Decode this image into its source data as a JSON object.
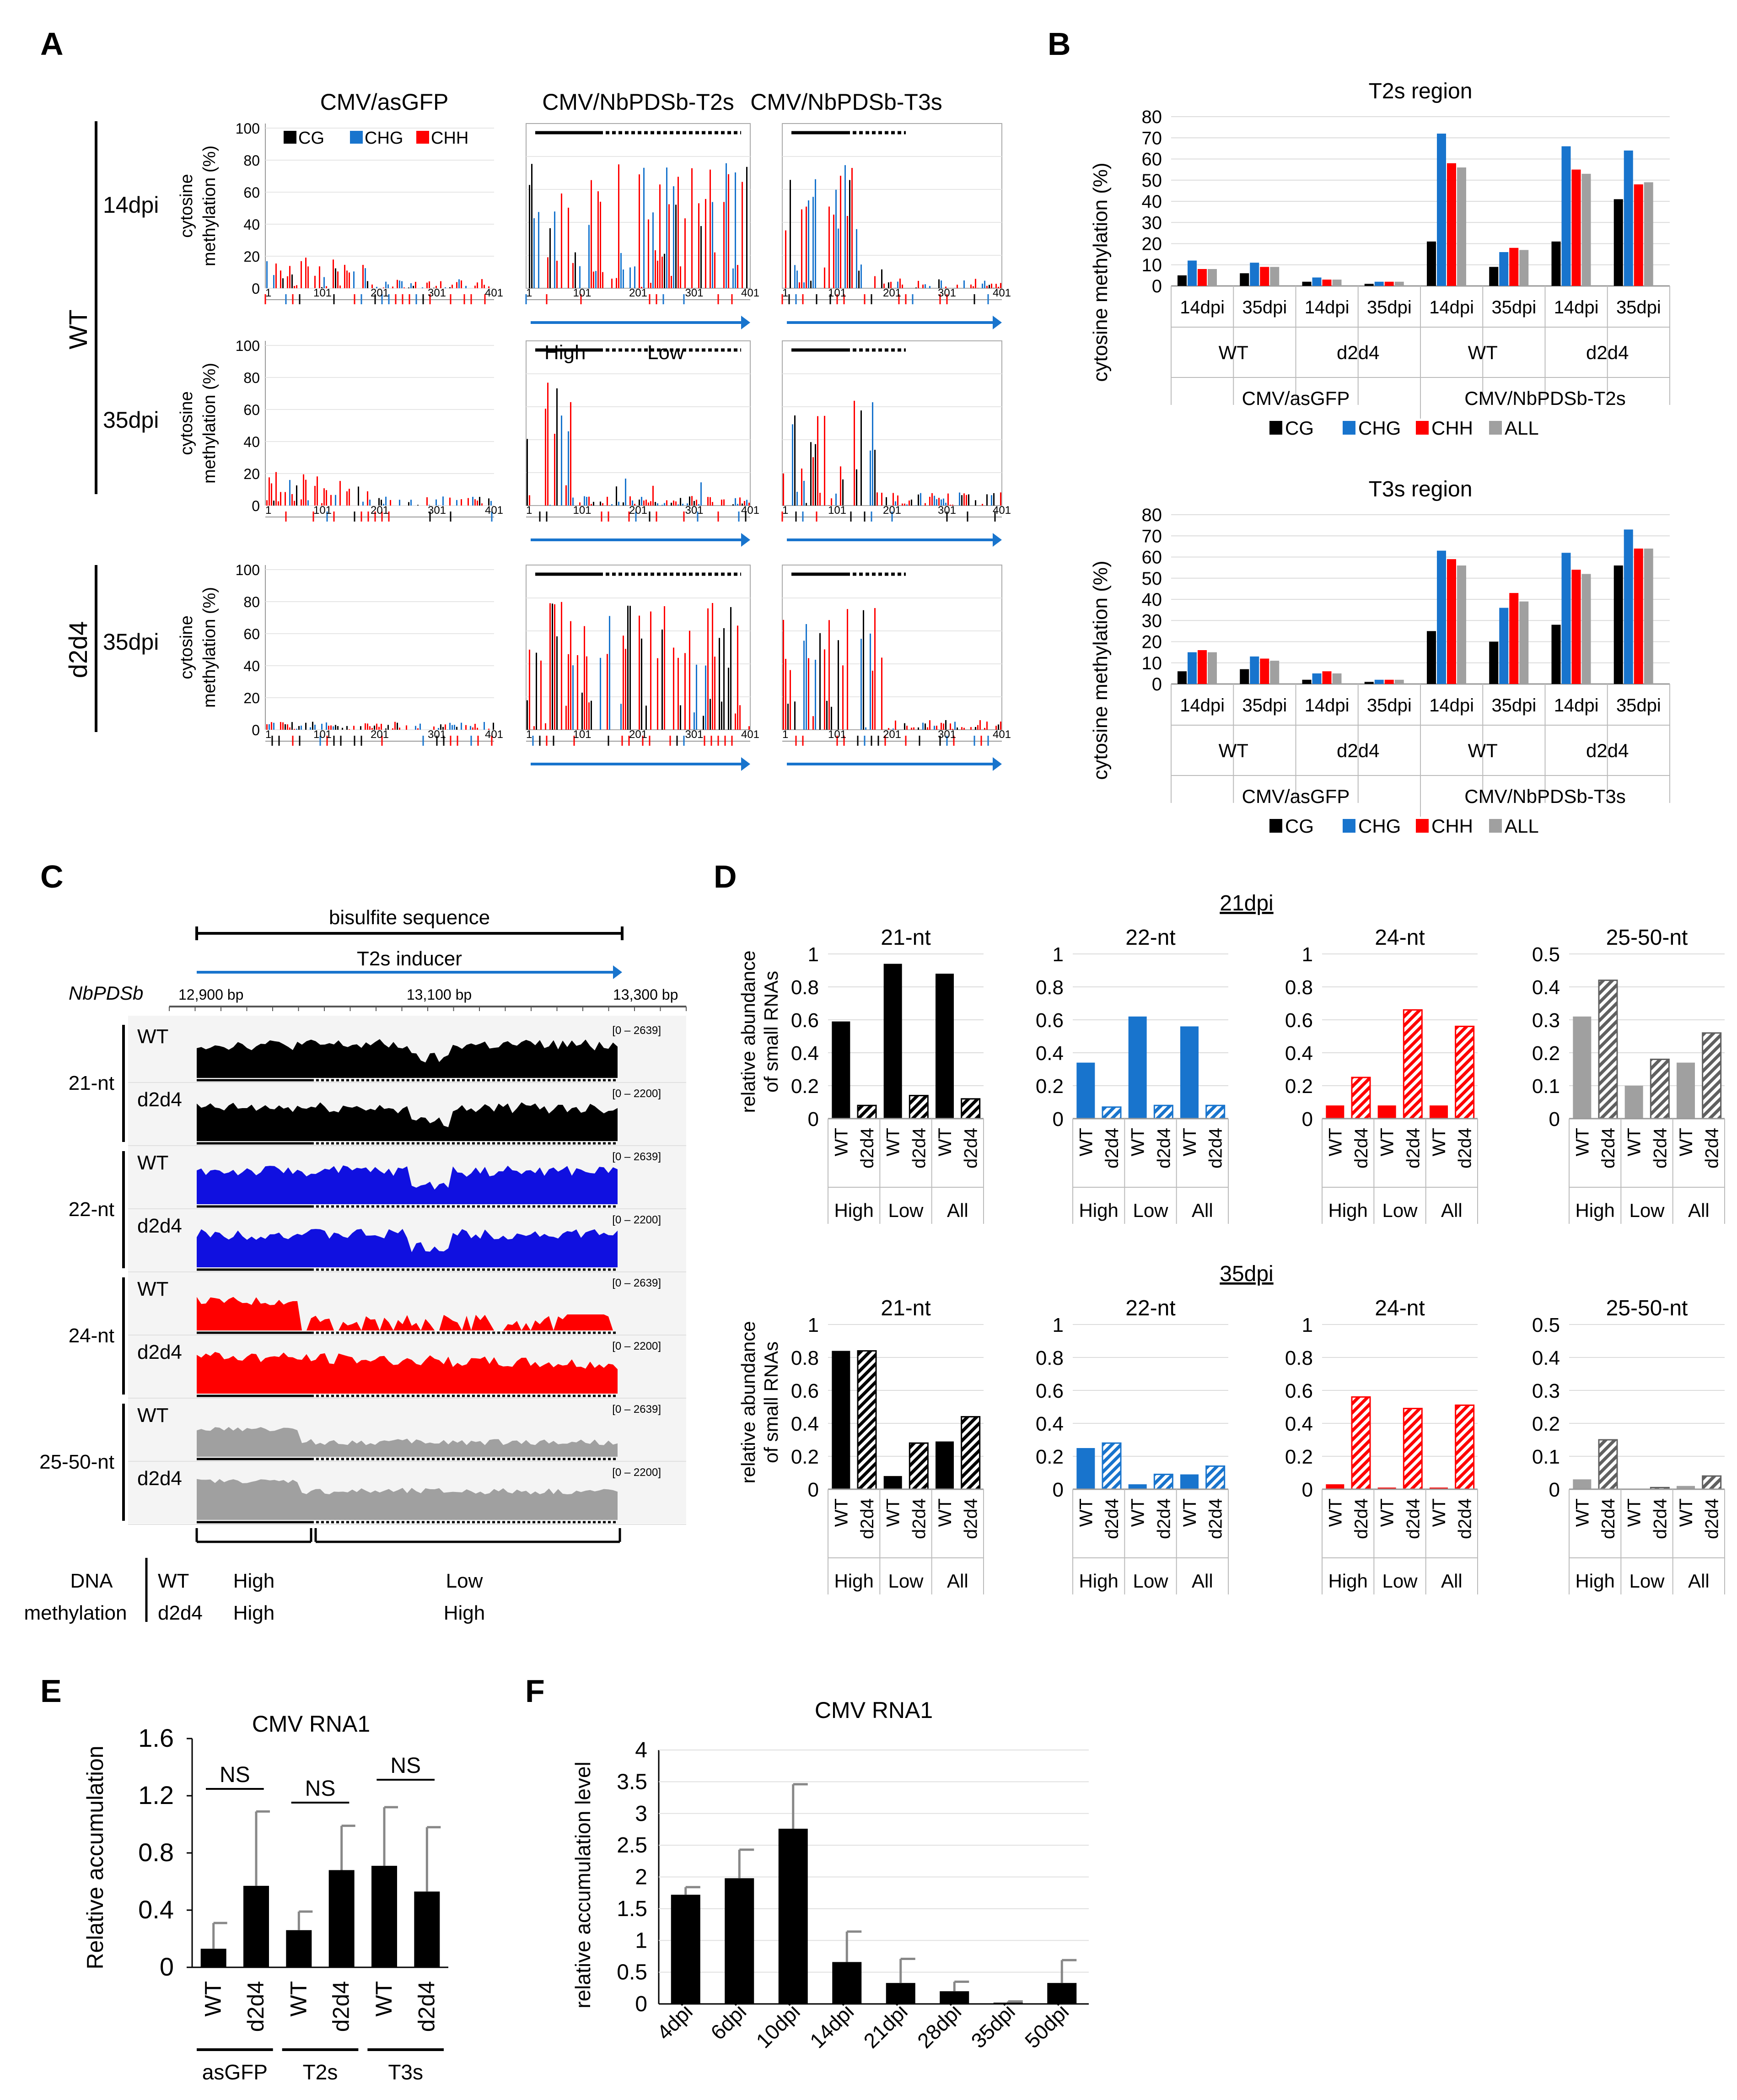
{
  "panel_labels": {
    "A": "A",
    "B": "B",
    "C": "C",
    "D": "D",
    "E": "E",
    "F": "F"
  },
  "colors": {
    "CG": "#000000",
    "CHG": "#1874cd",
    "CHH": "#ff0000",
    "ALL": "#a0a0a0",
    "nt21": "#000000",
    "nt22": "#1010e0",
    "nt24": "#ff0000",
    "nt2550": "#a0a0a0",
    "arrow": "#1874cd"
  },
  "panelA": {
    "col_titles": [
      "CMV/asGFP",
      "CMV/NbPDSb-T2s",
      "CMV/NbPDSb-T3s"
    ],
    "legend": [
      "CG",
      "CHG",
      "CHH"
    ],
    "genotypes": [
      "WT",
      "d2d4"
    ],
    "timepoints": [
      "14dpi",
      "35dpi",
      "35dpi"
    ],
    "ylabel": [
      "cytosine",
      "methylation (%)"
    ],
    "yticks": [
      "100",
      "80",
      "60",
      "40",
      "20",
      "0"
    ],
    "xticks": [
      "1",
      "101",
      "201",
      "301",
      "401"
    ],
    "high_label": "High",
    "low_label": "Low"
  },
  "panelB": {
    "ylabel": "cytosine methylation (%)",
    "legend": [
      "CG",
      "CHG",
      "CHH",
      "ALL"
    ],
    "yticks": [
      "80",
      "70",
      "60",
      "50",
      "40",
      "30",
      "20",
      "10",
      "0"
    ],
    "dpi": [
      "14dpi",
      "35dpi",
      "14dpi",
      "35dpi",
      "14dpi",
      "35dpi",
      "14dpi",
      "35dpi"
    ],
    "genotypes": [
      "WT",
      "d2d4",
      "WT",
      "d2d4"
    ],
    "treat_T2": [
      "CMV/asGFP",
      "CMV/NbPDSb-T2s"
    ],
    "treat_T3": [
      "CMV/asGFP",
      "CMV/NbPDSb-T3s"
    ]
  },
  "panelC": {
    "bisulfite": "bisulfite sequence",
    "inducer": "T2s inducer",
    "gene": "NbPDSb",
    "coords": [
      "12,900 bp",
      "13,100 bp",
      "13,300 bp"
    ],
    "rows": [
      {
        "size": "21-nt",
        "sample": "WT",
        "range": "[0 – 2639]"
      },
      {
        "size": "21-nt",
        "sample": "d2d4",
        "range": "[0 – 2200]"
      },
      {
        "size": "22-nt",
        "sample": "WT",
        "range": "[0 – 2639]"
      },
      {
        "size": "22-nt",
        "sample": "d2d4",
        "range": "[0 – 2200]"
      },
      {
        "size": "24-nt",
        "sample": "WT",
        "range": "[0 – 2639]"
      },
      {
        "size": "24-nt",
        "sample": "d2d4",
        "range": "[0 – 2200]"
      },
      {
        "size": "25-50-nt",
        "sample": "WT",
        "range": "[0 – 2639]"
      },
      {
        "size": "25-50-nt",
        "sample": "d2d4",
        "range": "[0 – 2200]"
      }
    ],
    "size_labels": [
      "21-nt",
      "22-nt",
      "24-nt",
      "25-50-nt"
    ],
    "methyl_label1": "DNA",
    "methyl_label2": "methylation",
    "methyl_rows": [
      {
        "geno": "WT",
        "left": "High",
        "right": "Low"
      },
      {
        "geno": "d2d4",
        "left": "High",
        "right": "High"
      }
    ]
  },
  "panelD": {
    "time1": "21dpi",
    "time2": "35dpi",
    "ylabel": [
      "relative abundance",
      "of small RNAs"
    ],
    "sizes": [
      "21-nt",
      "22-nt",
      "24-nt",
      "25-50-nt"
    ],
    "yticks_1": [
      "1",
      "0.8",
      "0.6",
      "0.4",
      "0.2",
      "0"
    ],
    "yticks_05": [
      "0.5",
      "0.4",
      "0.3",
      "0.2",
      "0.1",
      "0"
    ],
    "bars": [
      "WT",
      "d2d4",
      "WT",
      "d2d4",
      "WT",
      "d2d4"
    ],
    "groups": [
      "High",
      "Low",
      "All"
    ]
  },
  "panelE": {
    "title": "CMV RNA1",
    "ylabel": "Relative accumulation",
    "yticks": [
      "1.6",
      "1.2",
      "0.8",
      "0.4",
      "0"
    ],
    "bars": [
      "WT",
      "d2d4",
      "WT",
      "d2d4",
      "WT",
      "d2d4"
    ],
    "groups": [
      "asGFP",
      "T2s",
      "T3s"
    ],
    "sig": [
      "NS",
      "NS",
      "NS"
    ]
  },
  "panelF": {
    "title": "CMV RNA1",
    "ylabel": "relative accumulation level",
    "yticks": [
      "4",
      "3.5",
      "3",
      "2.5",
      "2",
      "1.5",
      "1",
      "0.5",
      "0"
    ]
  },
  "chart_data": [
    {
      "id": "B-T2s",
      "type": "bar",
      "title": "T2s region",
      "ylim": [
        0,
        80
      ],
      "categories": [
        "14dpi",
        "35dpi",
        "14dpi",
        "35dpi",
        "14dpi",
        "35dpi",
        "14dpi",
        "35dpi"
      ],
      "series": [
        {
          "name": "CG",
          "values": [
            5,
            6,
            2,
            1,
            21,
            9,
            21,
            41
          ]
        },
        {
          "name": "CHG",
          "values": [
            12,
            11,
            4,
            2,
            72,
            16,
            66,
            64
          ]
        },
        {
          "name": "CHH",
          "values": [
            8,
            9,
            3,
            2,
            58,
            18,
            55,
            48
          ]
        },
        {
          "name": "ALL",
          "values": [
            8,
            9,
            3,
            2,
            56,
            17,
            53,
            49
          ]
        }
      ]
    },
    {
      "id": "B-T3s",
      "type": "bar",
      "title": "T3s region",
      "ylim": [
        0,
        80
      ],
      "categories": [
        "14dpi",
        "35dpi",
        "14dpi",
        "35dpi",
        "14dpi",
        "35dpi",
        "14dpi",
        "35dpi"
      ],
      "series": [
        {
          "name": "CG",
          "values": [
            6,
            7,
            2,
            1,
            25,
            20,
            28,
            56
          ]
        },
        {
          "name": "CHG",
          "values": [
            15,
            13,
            5,
            2,
            63,
            36,
            62,
            73
          ]
        },
        {
          "name": "CHH",
          "values": [
            16,
            12,
            6,
            2,
            59,
            43,
            54,
            64
          ]
        },
        {
          "name": "ALL",
          "values": [
            15,
            11,
            5,
            2,
            56,
            39,
            52,
            64
          ]
        }
      ]
    },
    {
      "id": "D-21dpi",
      "type": "bar",
      "title": "21dpi",
      "categories": [
        "High-WT",
        "High-d2d4",
        "Low-WT",
        "Low-d2d4",
        "All-WT",
        "All-d2d4"
      ],
      "series": [
        {
          "name": "21-nt",
          "values": [
            0.59,
            0.08,
            0.94,
            0.14,
            0.88,
            0.12
          ]
        },
        {
          "name": "22-nt",
          "values": [
            0.34,
            0.07,
            0.62,
            0.08,
            0.56,
            0.08
          ]
        },
        {
          "name": "24-nt",
          "values": [
            0.08,
            0.25,
            0.08,
            0.66,
            0.08,
            0.56
          ]
        },
        {
          "name": "25-50-nt",
          "values": [
            0.31,
            0.42,
            0.1,
            0.18,
            0.17,
            0.26
          ]
        }
      ]
    },
    {
      "id": "D-35dpi",
      "type": "bar",
      "title": "35dpi",
      "categories": [
        "High-WT",
        "High-d2d4",
        "Low-WT",
        "Low-d2d4",
        "All-WT",
        "All-d2d4"
      ],
      "series": [
        {
          "name": "21-nt",
          "values": [
            0.84,
            0.84,
            0.08,
            0.28,
            0.29,
            0.44
          ]
        },
        {
          "name": "22-nt",
          "values": [
            0.25,
            0.28,
            0.03,
            0.09,
            0.09,
            0.14
          ]
        },
        {
          "name": "24-nt",
          "values": [
            0.03,
            0.56,
            0.01,
            0.49,
            0.01,
            0.51
          ]
        },
        {
          "name": "25-50-nt",
          "values": [
            0.03,
            0.15,
            0.0,
            0.005,
            0.01,
            0.04
          ]
        }
      ]
    },
    {
      "id": "E",
      "type": "bar",
      "title": "CMV RNA1",
      "ylabel": "Relative accumulation",
      "ylim": [
        0,
        1.6
      ],
      "categories": [
        "asGFP-WT",
        "asGFP-d2d4",
        "T2s-WT",
        "T2s-d2d4",
        "T3s-WT",
        "T3s-d2d4"
      ],
      "values": [
        0.13,
        0.57,
        0.26,
        0.68,
        0.71,
        0.53
      ],
      "errors": [
        0.18,
        0.52,
        0.13,
        0.31,
        0.41,
        0.45
      ]
    },
    {
      "id": "F",
      "type": "bar",
      "title": "CMV RNA1",
      "ylabel": "relative accumulation level",
      "ylim": [
        0,
        4
      ],
      "categories": [
        "4dpi",
        "6dpi",
        "10dpi",
        "14dpi",
        "21dpi",
        "28dpi",
        "35dpi",
        "50dpi"
      ],
      "values": [
        1.72,
        1.98,
        2.76,
        0.66,
        0.33,
        0.2,
        0.02,
        0.33
      ],
      "errors": [
        0.12,
        0.45,
        0.7,
        0.48,
        0.38,
        0.15,
        0.02,
        0.36
      ]
    }
  ]
}
